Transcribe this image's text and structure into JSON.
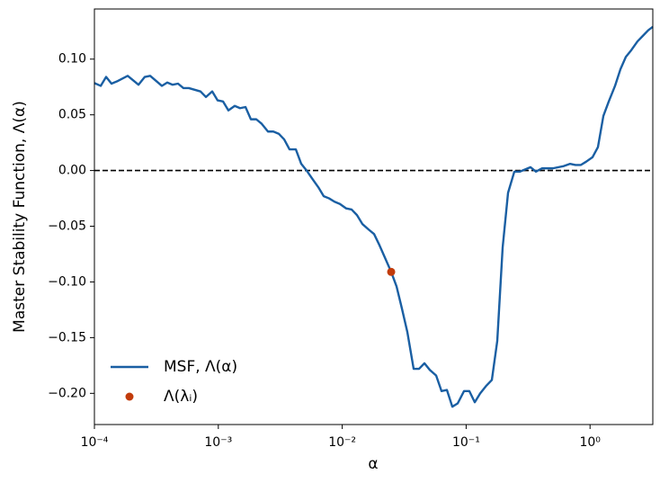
{
  "chart_data": {
    "type": "line",
    "xlabel": "α",
    "ylabel": "Master Stability Function, Λ(α)",
    "xscale": "log",
    "xlim": [
      0.0001,
      3.21
    ],
    "ylim": [
      -0.228,
      0.145
    ],
    "xticks": [
      {
        "value": 0.0001,
        "label": "10⁻⁴"
      },
      {
        "value": 0.001,
        "label": "10⁻³"
      },
      {
        "value": 0.01,
        "label": "10⁻²"
      },
      {
        "value": 0.1,
        "label": "10⁻¹"
      },
      {
        "value": 1,
        "label": "10⁰"
      }
    ],
    "yticks": [
      {
        "value": 0.1,
        "label": "0.10"
      },
      {
        "value": 0.05,
        "label": "0.05"
      },
      {
        "value": 0,
        "label": "0.00"
      },
      {
        "value": -0.05,
        "label": "−0.05"
      },
      {
        "value": -0.1,
        "label": "−0.10"
      },
      {
        "value": -0.15,
        "label": "−0.15"
      },
      {
        "value": -0.2,
        "label": "−0.20"
      }
    ],
    "reference_line": {
      "y": 0,
      "color": "#000000",
      "dashed": true
    },
    "legend": "lower left",
    "series": [
      {
        "name": "MSF, Λ(α)",
        "color": "#1a5fa3",
        "kind": "line",
        "x": [
          0.0001,
          0.0001124,
          0.0001243,
          0.0001374,
          0.0001518,
          0.0001856,
          0.0002268,
          0.0002549,
          0.0002818,
          0.0003502,
          0.0003871,
          0.0004278,
          0.000473,
          0.0005228,
          0.0005781,
          0.0007184,
          0.0007941,
          0.0008928,
          0.000987,
          0.001091,
          0.001206,
          0.001356,
          0.001498,
          0.001657,
          0.001831,
          0.002024,
          0.002238,
          0.002516,
          0.00278,
          0.003074,
          0.003398,
          0.003755,
          0.004222,
          0.004668,
          0.00516,
          0.005705,
          0.006412,
          0.007088,
          0.007834,
          0.008661,
          0.009575,
          0.01076,
          0.0119,
          0.01315,
          0.01454,
          0.01635,
          0.01807,
          0.01997,
          0.02208,
          0.02483,
          0.02744,
          0.03034,
          0.03354,
          0.0377,
          0.04168,
          0.04608,
          0.05093,
          0.05727,
          0.06331,
          0.06998,
          0.07734,
          0.08551,
          0.09614,
          0.1062,
          0.1174,
          0.1298,
          0.1459,
          0.1613,
          0.1783,
          0.1971,
          0.2179,
          0.2449,
          0.2708,
          0.2993,
          0.3308,
          0.3657,
          0.4112,
          0.4545,
          0.5023,
          0.5554,
          0.6139,
          0.6902,
          0.7629,
          0.8434,
          0.9322,
          1.048,
          1.158,
          1.281,
          1.416,
          1.591,
          1.76,
          1.945,
          2.15,
          2.417,
          2.672,
          2.953,
          3.21
        ],
        "values": [
          0.0785,
          0.076,
          0.084,
          0.078,
          0.08,
          0.085,
          0.077,
          0.084,
          0.085,
          0.076,
          0.079,
          0.077,
          0.078,
          0.074,
          0.074,
          0.071,
          0.066,
          0.071,
          0.063,
          0.062,
          0.054,
          0.058,
          0.056,
          0.057,
          0.046,
          0.046,
          0.042,
          0.035,
          0.035,
          0.033,
          0.028,
          0.019,
          0.019,
          0.006,
          0.0,
          -0.007,
          -0.015,
          -0.023,
          -0.025,
          -0.028,
          -0.03,
          -0.034,
          -0.035,
          -0.04,
          -0.048,
          -0.053,
          -0.057,
          -0.067,
          -0.078,
          -0.091,
          -0.104,
          -0.124,
          -0.145,
          -0.178,
          -0.178,
          -0.173,
          -0.179,
          -0.184,
          -0.198,
          -0.197,
          -0.212,
          -0.209,
          -0.198,
          -0.198,
          -0.208,
          -0.2,
          -0.193,
          -0.188,
          -0.153,
          -0.069,
          -0.02,
          -0.001,
          -0.001,
          0.001,
          0.003,
          -0.001,
          0.002,
          0.002,
          0.002,
          0.003,
          0.004,
          0.006,
          0.005,
          0.005,
          0.008,
          0.012,
          0.021,
          0.049,
          0.062,
          0.076,
          0.091,
          0.102,
          0.108,
          0.116,
          0.121,
          0.126,
          0.129
        ]
      },
      {
        "name": "Λ(λᵢ)",
        "color": "#c23b0b",
        "kind": "scatter",
        "x": [
          0.02483
        ],
        "values": [
          -0.091
        ]
      }
    ]
  }
}
